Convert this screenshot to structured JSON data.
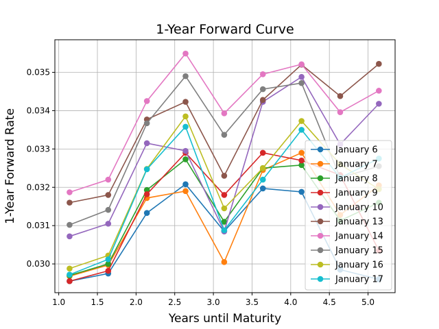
{
  "chart_data": {
    "type": "line",
    "title": "1-Year Forward Curve",
    "xlabel": "Years until Maturity",
    "ylabel": "1-Year Forward Rate",
    "xlim": [
      0.95,
      5.35
    ],
    "ylim": [
      0.02925,
      0.03585
    ],
    "xticks": [
      1.0,
      1.5,
      2.0,
      2.5,
      3.0,
      3.5,
      4.0,
      4.5,
      5.0
    ],
    "xtick_labels": [
      "1.0",
      "1.5",
      "2.0",
      "2.5",
      "3.0",
      "3.5",
      "4.0",
      "4.5",
      "5.0"
    ],
    "yticks": [
      0.03,
      0.031,
      0.032,
      0.033,
      0.034,
      0.035
    ],
    "ytick_labels": [
      "0.030",
      "0.031",
      "0.032",
      "0.033",
      "0.034",
      "0.035"
    ],
    "grid": true,
    "legend_position": "lower-right",
    "x": [
      1.14,
      1.64,
      2.14,
      2.64,
      3.14,
      3.64,
      4.14,
      4.64,
      5.14
    ],
    "series": [
      {
        "name": "January 6",
        "color": "#1f77b4",
        "values": [
          0.02955,
          0.02975,
          0.03133,
          0.03208,
          0.03085,
          0.03197,
          0.03188,
          0.02985,
          0.0296
        ]
      },
      {
        "name": "January 7",
        "color": "#ff7f0e",
        "values": [
          0.02968,
          0.02997,
          0.03172,
          0.0319,
          0.03005,
          0.03245,
          0.0329,
          0.03128,
          0.03205
        ]
      },
      {
        "name": "January 8",
        "color": "#2ca02c",
        "values": [
          0.0297,
          0.03,
          0.03193,
          0.03273,
          0.0311,
          0.0325,
          0.03258,
          0.03113,
          0.0316
        ]
      },
      {
        "name": "January 9",
        "color": "#d62728",
        "values": [
          0.02955,
          0.02982,
          0.03182,
          0.0329,
          0.0318,
          0.0329,
          0.0327,
          0.03232,
          0.03035
        ]
      },
      {
        "name": "January 10",
        "color": "#9467bd",
        "values": [
          0.03072,
          0.03105,
          0.03315,
          0.03295,
          0.03085,
          0.03423,
          0.03488,
          0.03312,
          0.03418
        ]
      },
      {
        "name": "January 13",
        "color": "#8c564b",
        "values": [
          0.0316,
          0.0318,
          0.03377,
          0.03423,
          0.0323,
          0.03428,
          0.0352,
          0.03438,
          0.03522
        ]
      },
      {
        "name": "January 14",
        "color": "#e377c2",
        "values": [
          0.03187,
          0.0322,
          0.03425,
          0.03549,
          0.03393,
          0.03495,
          0.03521,
          0.03396,
          0.03452
        ]
      },
      {
        "name": "January 15",
        "color": "#7f7f7f",
        "values": [
          0.03102,
          0.03141,
          0.03367,
          0.0349,
          0.03337,
          0.03456,
          0.03472,
          0.03225,
          0.03255
        ]
      },
      {
        "name": "January 16",
        "color": "#bcbd22",
        "values": [
          0.02988,
          0.03022,
          0.03248,
          0.03385,
          0.03145,
          0.0325,
          0.03373,
          0.0326,
          0.03195
        ]
      },
      {
        "name": "January 17",
        "color": "#17becf",
        "values": [
          0.02972,
          0.03012,
          0.03247,
          0.03358,
          0.03088,
          0.0322,
          0.0335,
          0.03225,
          0.03275
        ]
      }
    ]
  }
}
